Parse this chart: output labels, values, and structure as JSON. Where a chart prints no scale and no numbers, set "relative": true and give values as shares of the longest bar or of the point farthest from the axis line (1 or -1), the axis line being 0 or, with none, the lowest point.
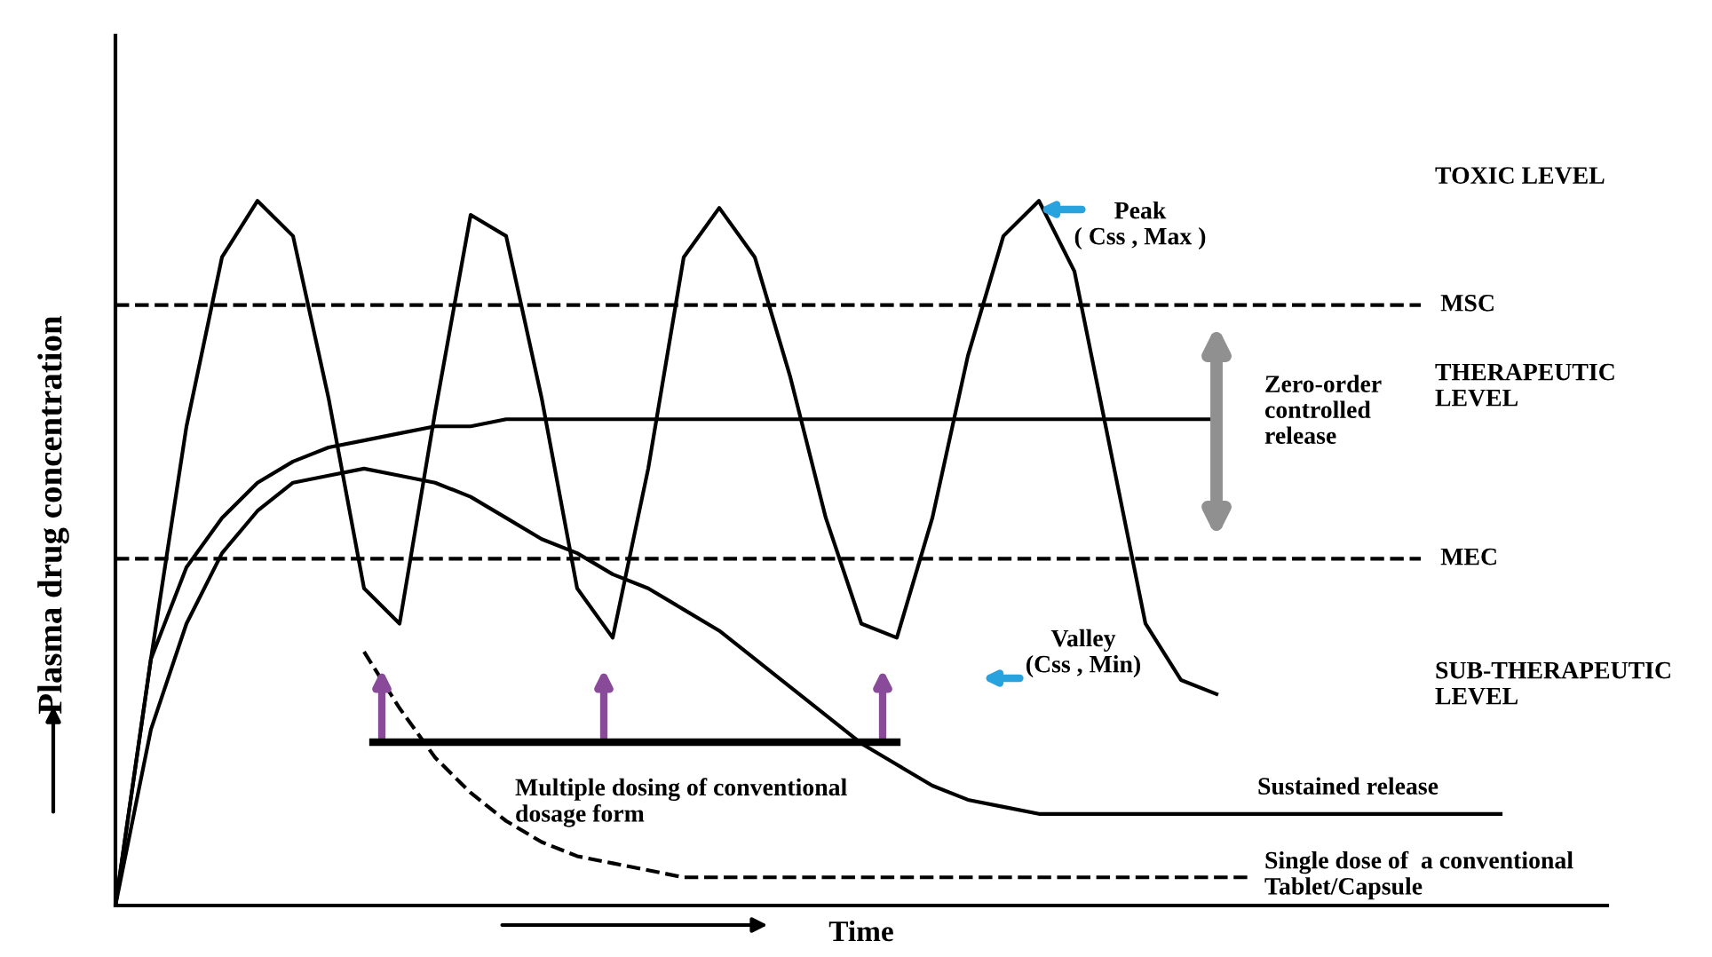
{
  "chart_data": {
    "type": "line",
    "relative": true,
    "xlabel": "Time",
    "ylabel": "Plasma drug concentration",
    "categories": [
      null,
      null,
      null,
      null,
      null,
      null,
      null,
      null,
      null,
      null,
      null,
      null,
      null,
      null,
      null,
      null,
      null,
      null,
      null,
      null,
      null,
      null,
      null,
      null,
      null,
      null,
      null,
      null,
      null,
      null,
      null,
      null,
      null,
      null,
      null,
      null,
      null,
      null,
      null,
      null,
      null,
      null,
      null
    ],
    "series": [
      {
        "color": "#000000",
        "line_style": "solid",
        "values": [
          0,
          0.35,
          0.68,
          0.92,
          1.0,
          0.95,
          0.72,
          0.45,
          0.4,
          0.7,
          0.98,
          0.95,
          0.72,
          0.45,
          0.38,
          0.62,
          0.92,
          0.99,
          0.92,
          0.75,
          0.55,
          0.4,
          0.38,
          0.55,
          0.78,
          0.95,
          1.0,
          0.9,
          0.65,
          0.4,
          0.32,
          0.3,
          null,
          null,
          null,
          null,
          null,
          null,
          null,
          null,
          null,
          null,
          null
        ]
      },
      {
        "color": "#000000",
        "line_style": "solid",
        "values": [
          0,
          0.35,
          0.48,
          0.55,
          0.6,
          0.63,
          0.65,
          0.66,
          0.67,
          0.68,
          0.68,
          0.69,
          0.69,
          0.69,
          0.69,
          0.69,
          0.69,
          0.69,
          0.69,
          0.69,
          0.69,
          0.69,
          0.69,
          0.69,
          0.69,
          0.69,
          0.69,
          0.69,
          0.69,
          0.69,
          0.69,
          0.69,
          null,
          null,
          null,
          null,
          null,
          null,
          null,
          null,
          null,
          null,
          null
        ]
      },
      {
        "color": "#000000",
        "line_style": "solid",
        "values": [
          0,
          0.25,
          0.4,
          0.5,
          0.56,
          0.6,
          0.61,
          0.62,
          0.61,
          0.6,
          0.58,
          0.55,
          0.52,
          0.5,
          0.47,
          0.45,
          0.42,
          0.39,
          0.35,
          0.31,
          0.27,
          0.23,
          0.2,
          0.17,
          0.15,
          0.14,
          0.13,
          0.13,
          0.13,
          0.13,
          0.13,
          0.13,
          0.13,
          0.13,
          0.13,
          0.13,
          0.13,
          0.13,
          0.13,
          0.13,
          null,
          null,
          null
        ]
      },
      {
        "color": "#000000",
        "line_style": "dashed",
        "values": [
          null,
          null,
          null,
          null,
          null,
          null,
          null,
          0.36,
          0.28,
          0.21,
          0.16,
          0.12,
          0.09,
          0.07,
          0.06,
          0.05,
          0.04,
          0.04,
          0.04,
          0.04,
          0.04,
          0.04,
          0.04,
          0.04,
          0.04,
          0.04,
          0.04,
          0.04,
          0.04,
          0.04,
          0.04,
          0.04,
          0.04,
          null,
          null,
          null,
          null,
          null,
          null,
          null,
          null,
          null,
          null
        ]
      }
    ],
    "ref_lines": [
      {
        "axis": "y",
        "value": 0.852,
        "label": "MSC",
        "color": "#000000",
        "line_style": "dashed"
      },
      {
        "axis": "y",
        "value": 0.492,
        "label": "MEC",
        "color": "#000000",
        "line_style": "dashed"
      }
    ],
    "annotations": [
      "Peak\n( Css , Max )",
      "Valley\n(Css , Min)",
      "TOXIC LEVEL",
      "THERAPEUTIC\nLEVEL",
      "Zero-order\ncontrolled\nrelease",
      "SUB-THERAPEUTIC\nLEVEL",
      "Multiple dosing of conventional\ndosage form",
      "Sustained release",
      "Single dose of  a conventional\nTablet/Capsule"
    ]
  }
}
